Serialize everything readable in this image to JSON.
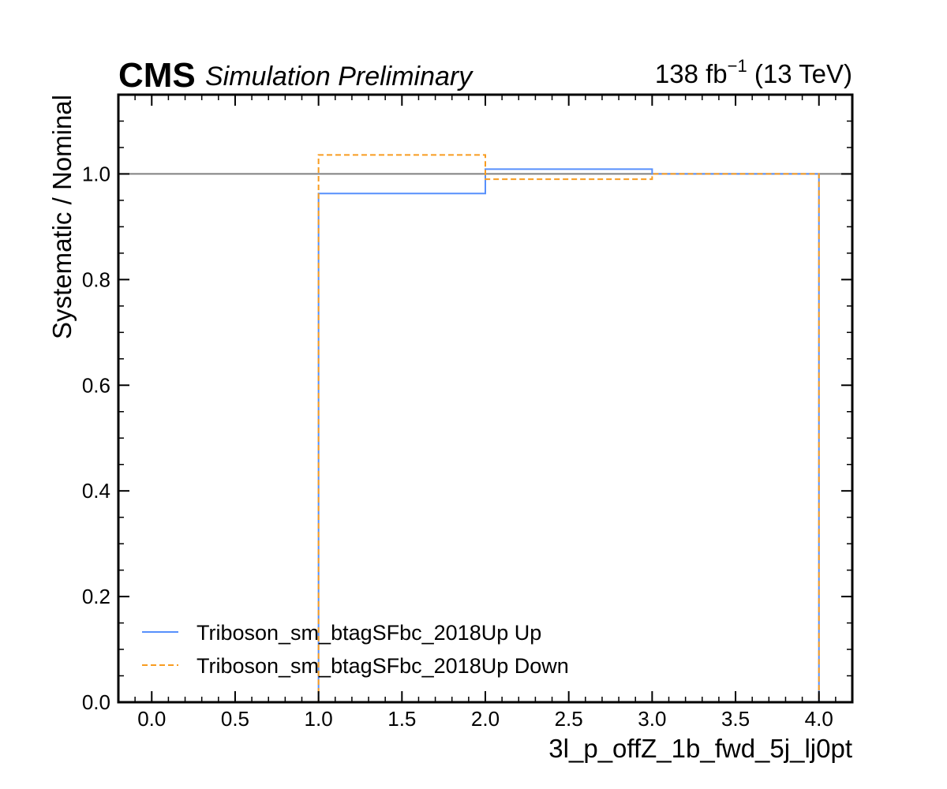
{
  "header": {
    "experiment": "CMS",
    "status": "Simulation Preliminary",
    "lumi_value": "138 fb",
    "lumi_exp": "−1",
    "energy": " (13 TeV)"
  },
  "chart_data": {
    "type": "line",
    "title": "",
    "xlabel": "3l_p_offZ_1b_fwd_5j_lj0pt",
    "ylabel": "Systematic / Nominal",
    "xlim": [
      -0.2,
      4.2
    ],
    "ylim": [
      0.0,
      1.15
    ],
    "x_ticks": [
      0.0,
      0.5,
      1.0,
      1.5,
      2.0,
      2.5,
      3.0,
      3.5,
      4.0
    ],
    "x_tick_labels": [
      "0.0",
      "0.5",
      "1.0",
      "1.5",
      "2.0",
      "2.5",
      "3.0",
      "3.5",
      "4.0"
    ],
    "y_ticks": [
      0.0,
      0.2,
      0.4,
      0.6,
      0.8,
      1.0
    ],
    "y_tick_labels": [
      "0.0",
      "0.2",
      "0.4",
      "0.6",
      "0.8",
      "1.0"
    ],
    "bin_edges": [
      1,
      2,
      3,
      4
    ],
    "reference_line": {
      "y": 1.0,
      "color": "#808080"
    },
    "series": [
      {
        "name": "Triboson_sm_btagSFbc_2018Up Up",
        "color": "#5790fc",
        "style": "solid",
        "values": [
          0.963,
          1.009,
          1.0
        ]
      },
      {
        "name": "Triboson_sm_btagSFbc_2018Up Down",
        "color": "#f89c20",
        "style": "dashed",
        "values": [
          1.036,
          0.99,
          1.0
        ]
      }
    ],
    "legend_position": "lower-left",
    "grid": false
  }
}
